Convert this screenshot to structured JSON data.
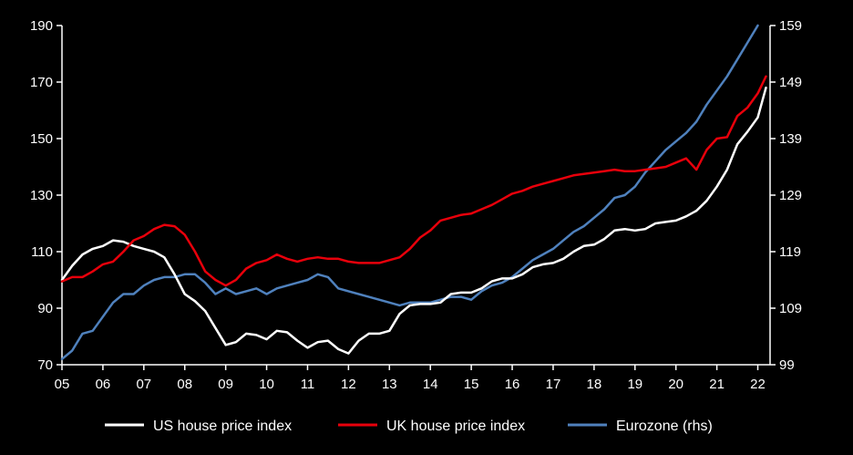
{
  "chart_data": {
    "type": "line",
    "title": "",
    "xlabel": "",
    "ylabel": "",
    "ylabel_right": "",
    "x_range": [
      2005,
      2022.3
    ],
    "x_ticks": [
      "05",
      "06",
      "07",
      "08",
      "09",
      "10",
      "11",
      "12",
      "13",
      "14",
      "15",
      "16",
      "17",
      "18",
      "19",
      "20",
      "21",
      "22"
    ],
    "x_tick_values": [
      2005,
      2006,
      2007,
      2008,
      2009,
      2010,
      2011,
      2012,
      2013,
      2014,
      2015,
      2016,
      2017,
      2018,
      2019,
      2020,
      2021,
      2022
    ],
    "ylim": [
      70,
      190
    ],
    "y_ticks": [
      70,
      90,
      110,
      130,
      150,
      170,
      190
    ],
    "ylim_right": [
      99,
      159
    ],
    "y_ticks_right": [
      99,
      109,
      119,
      129,
      139,
      149,
      159
    ],
    "grid": false,
    "legend_position": "bottom",
    "colors": {
      "background": "#000000",
      "axis": "#ffffff"
    },
    "series": [
      {
        "name": "US house price index",
        "axis": "left",
        "color": "#ffffff",
        "x": [
          2005.0,
          2005.25,
          2005.5,
          2005.75,
          2006.0,
          2006.25,
          2006.5,
          2006.75,
          2007.0,
          2007.25,
          2007.5,
          2007.75,
          2008.0,
          2008.25,
          2008.5,
          2008.75,
          2009.0,
          2009.25,
          2009.5,
          2009.75,
          2010.0,
          2010.25,
          2010.5,
          2010.75,
          2011.0,
          2011.25,
          2011.5,
          2011.75,
          2012.0,
          2012.25,
          2012.5,
          2012.75,
          2013.0,
          2013.25,
          2013.5,
          2013.75,
          2014.0,
          2014.25,
          2014.5,
          2014.75,
          2015.0,
          2015.25,
          2015.5,
          2015.75,
          2016.0,
          2016.25,
          2016.5,
          2016.75,
          2017.0,
          2017.25,
          2017.5,
          2017.75,
          2018.0,
          2018.25,
          2018.5,
          2018.75,
          2019.0,
          2019.25,
          2019.5,
          2019.75,
          2020.0,
          2020.25,
          2020.5,
          2020.75,
          2021.0,
          2021.25,
          2021.5,
          2021.75,
          2022.0,
          2022.2
        ],
        "values": [
          100,
          105,
          109,
          111,
          112,
          114,
          113.5,
          112,
          111,
          110,
          108,
          102,
          95,
          92.5,
          89,
          83,
          77,
          78,
          81,
          80.5,
          79,
          82,
          81.5,
          78.5,
          76,
          78,
          78.5,
          75.5,
          74,
          78.5,
          81,
          81,
          82,
          88,
          91,
          91.5,
          91.5,
          92,
          95,
          95.5,
          95.5,
          97,
          99.5,
          100.5,
          100.5,
          102,
          104.5,
          105.5,
          106,
          107.5,
          110,
          112,
          112.5,
          114.5,
          117.5,
          118,
          117.5,
          118,
          120,
          120.5,
          121,
          122.5,
          124.5,
          128,
          133,
          139,
          148,
          152.5,
          157.5,
          168
        ]
      },
      {
        "name": "UK house price index",
        "axis": "left",
        "color": "#e8000b",
        "x": [
          2005.0,
          2005.25,
          2005.5,
          2005.75,
          2006.0,
          2006.25,
          2006.5,
          2006.75,
          2007.0,
          2007.25,
          2007.5,
          2007.75,
          2008.0,
          2008.25,
          2008.5,
          2008.75,
          2009.0,
          2009.25,
          2009.5,
          2009.75,
          2010.0,
          2010.25,
          2010.5,
          2010.75,
          2011.0,
          2011.25,
          2011.5,
          2011.75,
          2012.0,
          2012.25,
          2012.5,
          2012.75,
          2013.0,
          2013.25,
          2013.5,
          2013.75,
          2014.0,
          2014.25,
          2014.5,
          2014.75,
          2015.0,
          2015.25,
          2015.5,
          2015.75,
          2016.0,
          2016.25,
          2016.5,
          2016.75,
          2017.0,
          2017.25,
          2017.5,
          2017.75,
          2018.0,
          2018.25,
          2018.5,
          2018.75,
          2019.0,
          2019.25,
          2019.5,
          2019.75,
          2020.0,
          2020.25,
          2020.5,
          2020.75,
          2021.0,
          2021.25,
          2021.5,
          2021.75,
          2022.0,
          2022.2
        ],
        "values": [
          99.5,
          101,
          101,
          103,
          105.5,
          106.5,
          110,
          114,
          115.5,
          118,
          119.5,
          119,
          116,
          110,
          103,
          100,
          98,
          100,
          104,
          106,
          107,
          109,
          107.5,
          106.5,
          107.5,
          108,
          107.5,
          107.5,
          106.5,
          106,
          106,
          106,
          107,
          108,
          111,
          115,
          117.5,
          121,
          122,
          123,
          123.5,
          125,
          126.5,
          128.5,
          130.5,
          131.5,
          133,
          134,
          135,
          136,
          137,
          137.5,
          138,
          138.5,
          139,
          138.5,
          138.5,
          139,
          139.5,
          140,
          141.5,
          143,
          139,
          146,
          150,
          150.5,
          158,
          161,
          166,
          172
        ]
      },
      {
        "name": "Eurozone (rhs)",
        "axis": "right",
        "color": "#4f81bd",
        "x": [
          2005.0,
          2005.25,
          2005.5,
          2005.75,
          2006.0,
          2006.25,
          2006.5,
          2006.75,
          2007.0,
          2007.25,
          2007.5,
          2007.75,
          2008.0,
          2008.25,
          2008.5,
          2008.75,
          2009.0,
          2009.25,
          2009.5,
          2009.75,
          2010.0,
          2010.25,
          2010.5,
          2010.75,
          2011.0,
          2011.25,
          2011.5,
          2011.75,
          2012.0,
          2012.25,
          2012.5,
          2012.75,
          2013.0,
          2013.25,
          2013.5,
          2013.75,
          2014.0,
          2014.25,
          2014.5,
          2014.75,
          2015.0,
          2015.25,
          2015.5,
          2015.75,
          2016.0,
          2016.25,
          2016.5,
          2016.75,
          2017.0,
          2017.25,
          2017.5,
          2017.75,
          2018.0,
          2018.25,
          2018.5,
          2018.75,
          2019.0,
          2019.25,
          2019.5,
          2019.75,
          2020.0,
          2020.25,
          2020.5,
          2020.75,
          2021.0,
          2021.25,
          2021.5,
          2021.75,
          2022.0
        ],
        "values": [
          100,
          101.5,
          104.5,
          105,
          107.5,
          110,
          111.5,
          111.5,
          113,
          114,
          114.5,
          114.5,
          115,
          115,
          113.5,
          111.5,
          112.5,
          111.5,
          112,
          112.5,
          111.5,
          112.5,
          113,
          113.5,
          114,
          115,
          114.5,
          112.5,
          112,
          111.5,
          111,
          110.5,
          110,
          109.5,
          110,
          110,
          110,
          110.5,
          111,
          111,
          110.5,
          112,
          113,
          113.5,
          114.5,
          116,
          117.5,
          118.5,
          119.5,
          121,
          122.5,
          123.5,
          125,
          126.5,
          128.5,
          129,
          130.5,
          133,
          135,
          137,
          138.5,
          140,
          142,
          145,
          147.5,
          150,
          153,
          156,
          159
        ]
      }
    ]
  }
}
